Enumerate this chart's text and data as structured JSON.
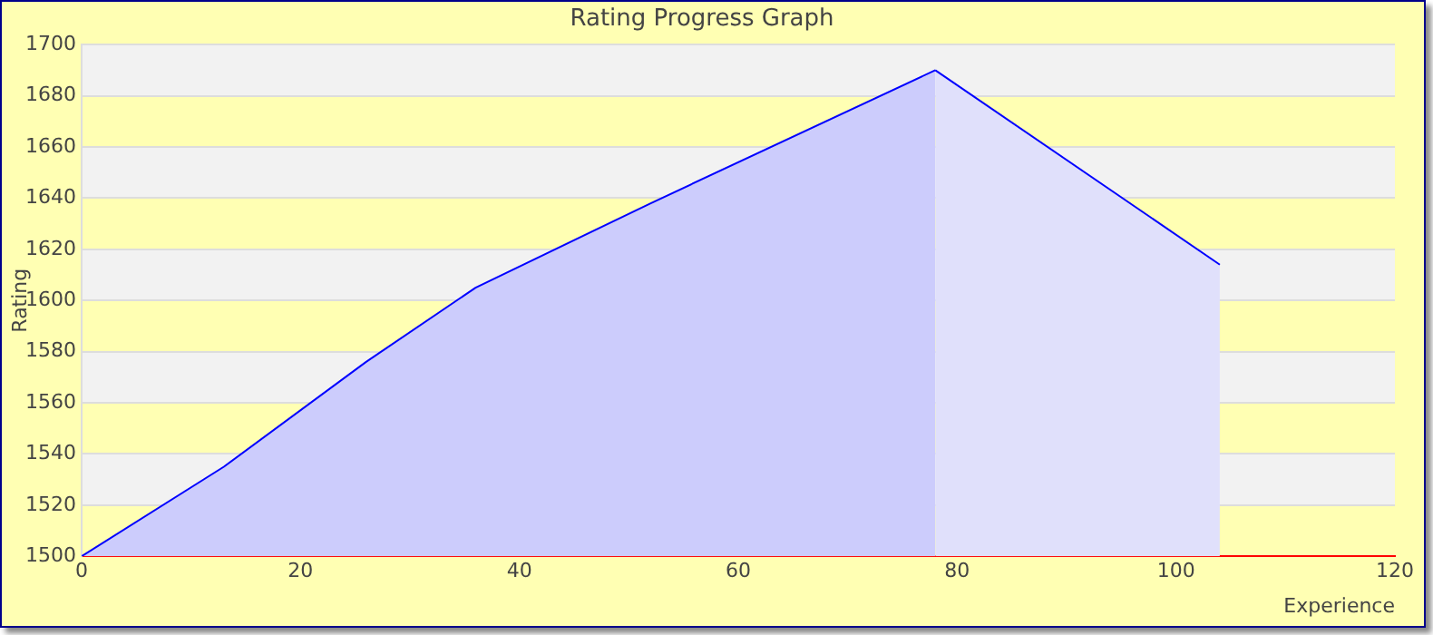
{
  "chart_data": {
    "type": "area",
    "title": "Rating Progress Graph",
    "xlabel": "Experience",
    "ylabel": "Rating",
    "series": [
      {
        "color": "#ccccfc",
        "x": [
          0,
          13,
          26,
          36,
          52,
          78
        ],
        "values": [
          1500,
          1535,
          1576,
          1605,
          1638,
          1690
        ]
      },
      {
        "color": "#e0e0fb",
        "x": [
          78,
          104
        ],
        "values": [
          1690,
          1614
        ]
      }
    ],
    "xlim": [
      0,
      120
    ],
    "xticks": [
      0,
      20,
      40,
      60,
      80,
      100,
      120
    ],
    "ylim": [
      1500,
      1700
    ],
    "yticks": [
      1500,
      1520,
      1540,
      1560,
      1580,
      1600,
      1620,
      1640,
      1660,
      1680,
      1700
    ],
    "grid": "y",
    "legend": false,
    "marker": "none"
  }
}
